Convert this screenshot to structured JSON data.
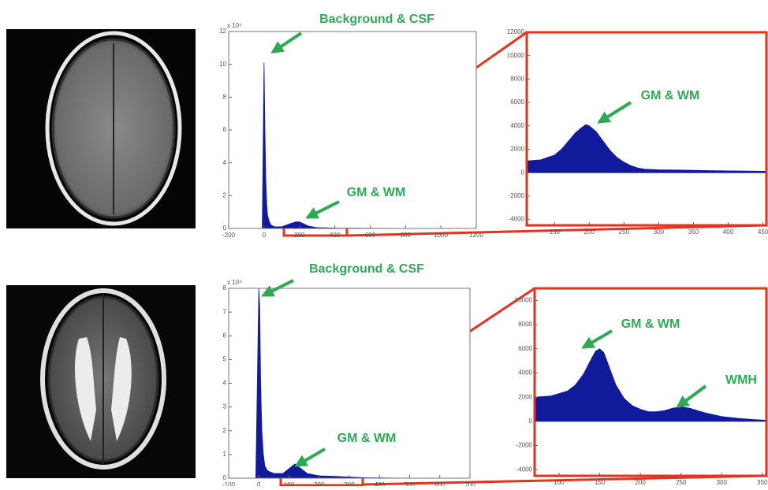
{
  "chart_data": [
    {
      "type": "area",
      "color": "#101a9a",
      "frame": "#777",
      "y_exponent": "x 10⁴",
      "x": [
        -10,
        0,
        5,
        10,
        15,
        20,
        30,
        40,
        60,
        100,
        150,
        180,
        200,
        220,
        250,
        300,
        400,
        600,
        1000
      ],
      "values": [
        0,
        10.1,
        6,
        3,
        1.5,
        0.8,
        0.4,
        0.2,
        0.1,
        0.1,
        0.3,
        0.4,
        0.4,
        0.3,
        0.15,
        0.05,
        0.02,
        0.01,
        0
      ],
      "xlim": [
        -200,
        1200
      ],
      "xticks": [
        -200,
        0,
        200,
        400,
        600,
        800,
        1000,
        1200
      ],
      "ylim": [
        0,
        12
      ],
      "yticks": [
        0,
        2,
        4,
        6,
        8,
        10,
        12
      ],
      "annotations": [
        "Background & CSF",
        "GM & WM"
      ]
    },
    {
      "type": "area",
      "color": "#101a9a",
      "frame": "#e8321e",
      "x": [
        110,
        130,
        150,
        160,
        170,
        180,
        190,
        195,
        200,
        210,
        220,
        230,
        240,
        250,
        260,
        270,
        280,
        300,
        350,
        400,
        455
      ],
      "values": [
        1000,
        1100,
        1500,
        2000,
        2700,
        3400,
        3900,
        4100,
        4000,
        3500,
        2700,
        1900,
        1300,
        900,
        600,
        400,
        300,
        250,
        200,
        150,
        120
      ],
      "xlim": [
        110,
        455
      ],
      "xticks": [
        150,
        200,
        250,
        300,
        350,
        400,
        450
      ],
      "ylim": [
        -4500,
        12000
      ],
      "yticks": [
        -4000,
        -2000,
        0,
        2000,
        4000,
        6000,
        8000,
        10000,
        12000
      ],
      "annotations": [
        "GM & WM"
      ]
    },
    {
      "type": "area",
      "color": "#101a9a",
      "frame": "#777",
      "y_exponent": "x 10⁴",
      "x": [
        -10,
        0,
        3,
        6,
        10,
        15,
        20,
        30,
        50,
        80,
        100,
        120,
        140,
        160,
        200,
        250,
        300,
        350,
        500
      ],
      "values": [
        0,
        8,
        7.2,
        4,
        2,
        1,
        0.5,
        0.3,
        0.2,
        0.2,
        0.4,
        0.6,
        0.4,
        0.2,
        0.1,
        0.08,
        0.05,
        0.02,
        0
      ],
      "xlim": [
        -100,
        700
      ],
      "xticks": [
        -100,
        0,
        100,
        200,
        300,
        400,
        500,
        600,
        700
      ],
      "ylim": [
        0,
        8
      ],
      "yticks": [
        0,
        1,
        2,
        3,
        4,
        5,
        6,
        7,
        8
      ],
      "annotations": [
        "Background & CSF",
        "GM & WM"
      ]
    },
    {
      "type": "area",
      "color": "#101a9a",
      "frame": "#e8321e",
      "x": [
        70,
        90,
        110,
        120,
        130,
        140,
        145,
        150,
        155,
        160,
        170,
        180,
        190,
        200,
        210,
        220,
        230,
        240,
        250,
        260,
        270,
        280,
        300,
        320,
        340,
        355
      ],
      "values": [
        2000,
        2100,
        2500,
        3000,
        3900,
        5200,
        5800,
        6000,
        5700,
        4800,
        3000,
        1900,
        1300,
        1000,
        800,
        800,
        900,
        1100,
        1200,
        1100,
        900,
        700,
        400,
        250,
        150,
        100
      ],
      "xlim": [
        70,
        355
      ],
      "xticks": [
        100,
        150,
        200,
        250,
        300,
        350
      ],
      "ylim": [
        -4500,
        11000
      ],
      "yticks": [
        -4000,
        -2000,
        0,
        2000,
        4000,
        6000,
        8000,
        10000
      ],
      "annotations": [
        "GM & WM",
        "WMH"
      ]
    }
  ]
}
